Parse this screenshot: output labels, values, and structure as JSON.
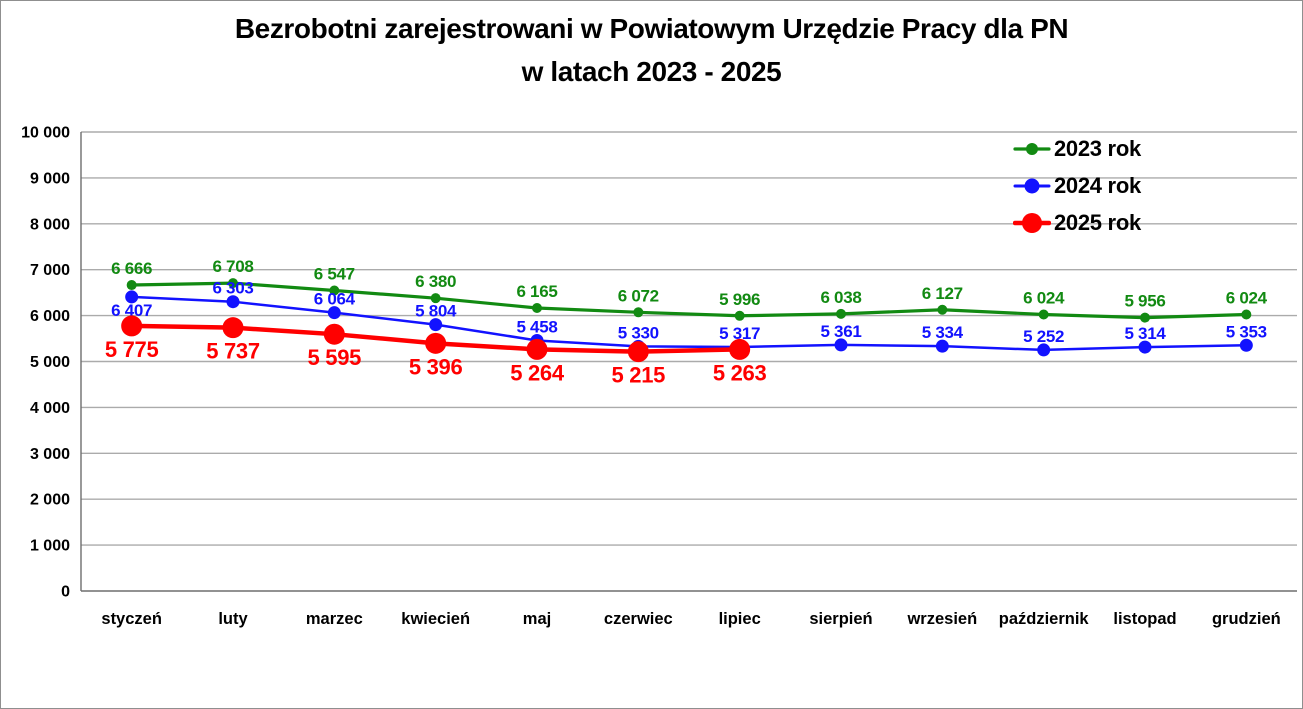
{
  "chart_data": {
    "type": "line",
    "title": "Bezrobotni zarejestrowani w Powiatowym Urzędzie Pracy dla PN w latach 2023 - 2025",
    "title_lines": [
      "Bezrobotni zarejestrowani w Powiatowym Urzędzie Pracy dla PN",
      "w latach 2023 - 2025"
    ],
    "xlabel": "",
    "ylabel": "",
    "categories": [
      "styczeń",
      "luty",
      "marzec",
      "kwiecień",
      "maj",
      "czerwiec",
      "lipiec",
      "sierpień",
      "wrzesień",
      "październik",
      "listopad",
      "grudzień"
    ],
    "series": [
      {
        "name": "2023 rok",
        "color": "#128A12",
        "values": [
          6666,
          6708,
          6547,
          6380,
          6165,
          6072,
          5996,
          6038,
          6127,
          6024,
          5956,
          6024
        ],
        "line_width": 3.2,
        "marker_radius": 5,
        "label_font_size": 17,
        "label_position": "above",
        "label_position_overrides": {},
        "label_gap_above": 11,
        "label_gap_below": 20
      },
      {
        "name": "2024 rok",
        "color": "#1212FF",
        "values": [
          6407,
          6303,
          6064,
          5804,
          5458,
          5330,
          5317,
          5361,
          5334,
          5252,
          5314,
          5353
        ],
        "line_width": 2.5,
        "marker_radius": 6.5,
        "label_font_size": 17,
        "label_position": "above",
        "label_position_overrides": {
          "0": "below"
        },
        "label_gap_above": 8,
        "label_gap_below": 19
      },
      {
        "name": "2025 rok",
        "color": "#FF0000",
        "values": [
          5775,
          5737,
          5595,
          5396,
          5264,
          5215,
          5263
        ],
        "line_width": 4.5,
        "marker_radius": 10.5,
        "label_font_size": 22,
        "label_position": "below",
        "label_position_overrides": {},
        "label_gap_above": 12,
        "label_gap_below": 31
      }
    ],
    "ylim": [
      0,
      10000
    ],
    "ytick_step": 1000,
    "ytick_labels": [
      "0",
      "1 000",
      "2 000",
      "3 000",
      "4 000",
      "5 000",
      "6 000",
      "7 000",
      "8 000",
      "9 000",
      "10 000"
    ],
    "grid": true,
    "gridline_color": "#ABABAB",
    "axis_color": "#6E6E6E",
    "tick_label_color": "#000000",
    "legend_position": "top-right",
    "number_format": "space-thousands"
  }
}
